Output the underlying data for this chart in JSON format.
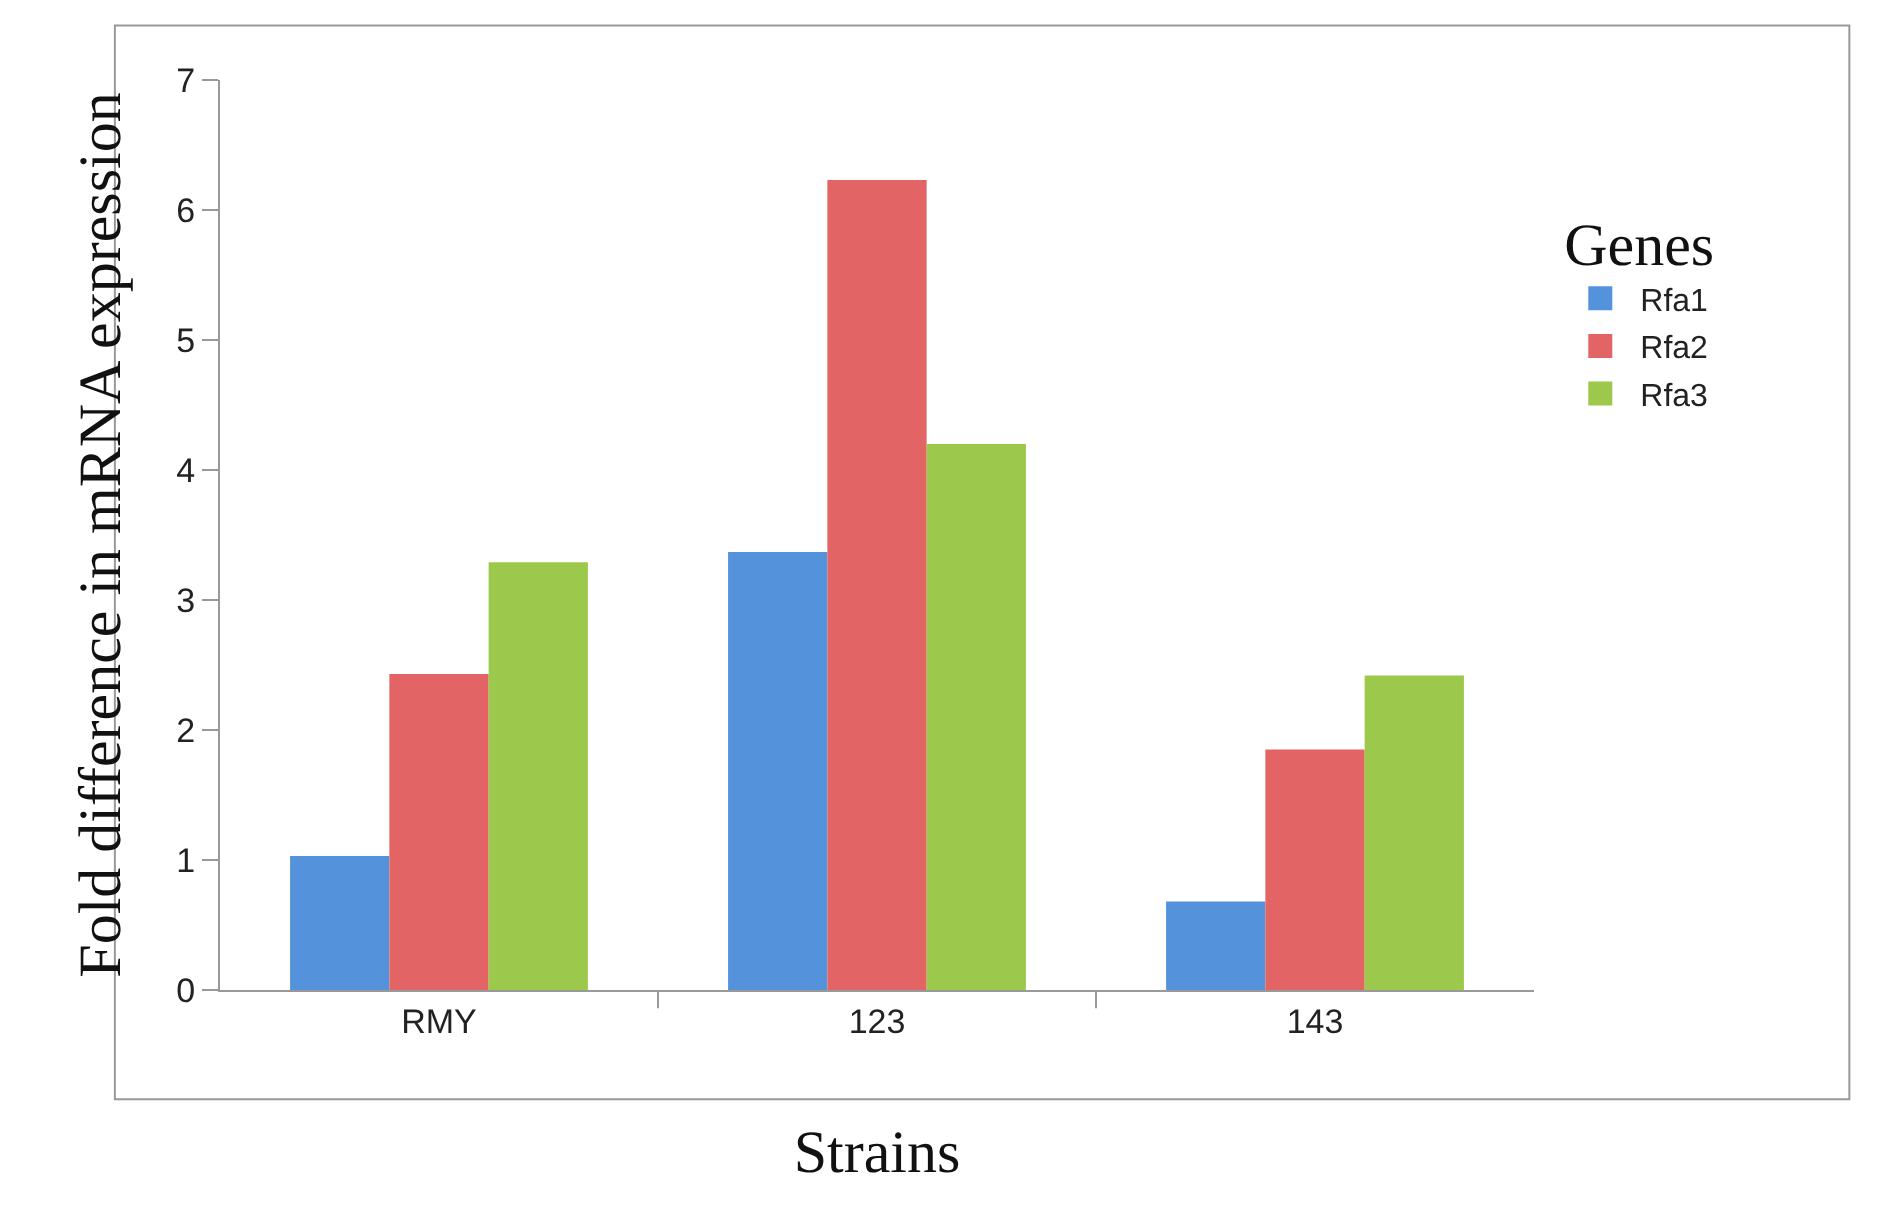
{
  "chart_data": {
    "type": "bar",
    "xlabel": "Strains",
    "ylabel": "Fold difference in mRNA expression",
    "legend_title": "Genes",
    "categories": [
      "RMY",
      "123",
      "143"
    ],
    "series": [
      {
        "name": "Rfa1",
        "color": "#5592dc",
        "values": [
          1.03,
          3.37,
          0.68
        ]
      },
      {
        "name": "Rfa2",
        "color": "#e26464",
        "values": [
          2.43,
          6.23,
          1.85
        ]
      },
      {
        "name": "Rfa3",
        "color": "#9cc84c",
        "values": [
          3.29,
          4.2,
          2.42
        ]
      }
    ],
    "ylim": [
      0,
      7
    ],
    "yticks": [
      0,
      1,
      2,
      3,
      4,
      5,
      6,
      7
    ],
    "grid": false,
    "legend": "right"
  }
}
